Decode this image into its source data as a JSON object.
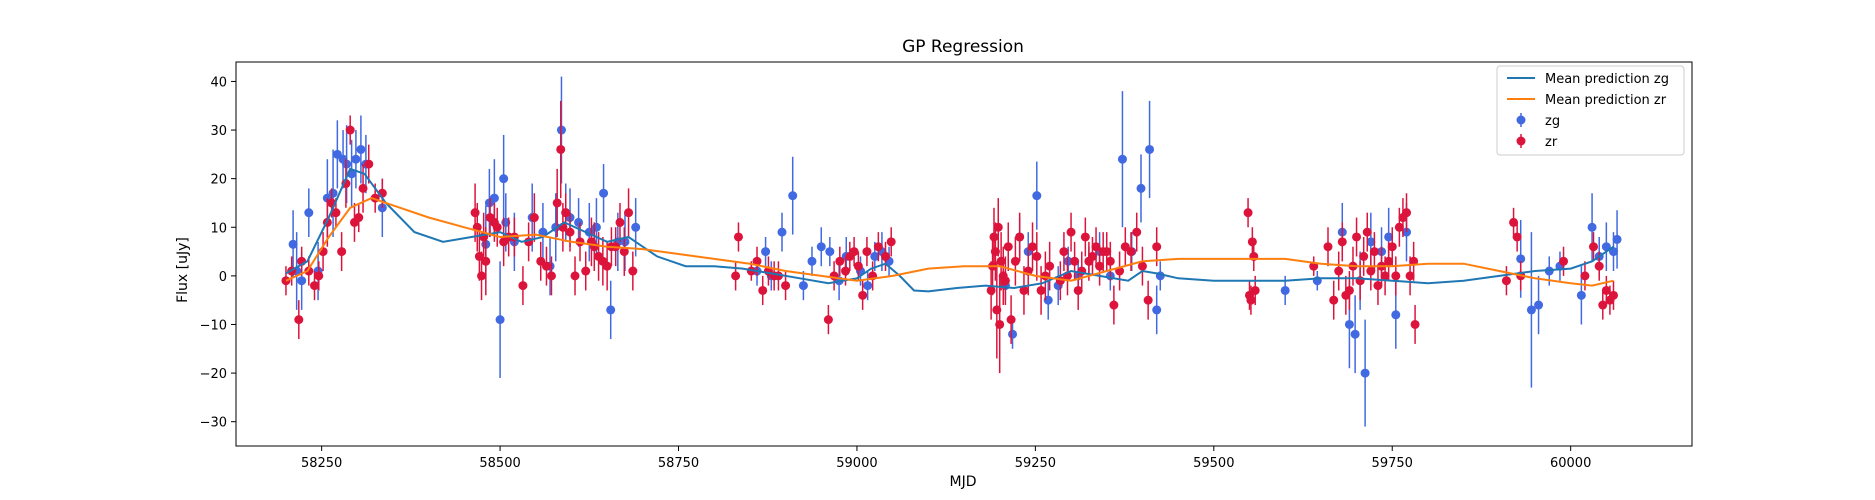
{
  "chart_data": {
    "type": "scatter",
    "title": "GP Regression",
    "xlabel": "MJD",
    "ylabel": "Flux [uJy]",
    "xlim": [
      58130,
      60170
    ],
    "ylim": [
      -35,
      44
    ],
    "xticks": [
      58250,
      58500,
      58750,
      59000,
      59250,
      59500,
      59750,
      60000
    ],
    "yticks": [
      -30,
      -20,
      -10,
      0,
      10,
      20,
      30,
      40
    ],
    "grid": false,
    "legend_position": "top-right",
    "legend": [
      {
        "label": "Mean prediction zg",
        "kind": "line",
        "color": "#1f77b4"
      },
      {
        "label": "Mean prediction zr",
        "kind": "line",
        "color": "#ff7f0e"
      },
      {
        "label": "zg",
        "kind": "errorbar",
        "color": "#4169e1"
      },
      {
        "label": "zr",
        "kind": "errorbar",
        "color": "#dc143c"
      }
    ],
    "series": [
      {
        "name": "Mean prediction zg",
        "kind": "line",
        "color": "#1f77b4",
        "x": [
          58200,
          58230,
          58260,
          58290,
          58310,
          58340,
          58380,
          58420,
          58460,
          58500,
          58530,
          58560,
          58590,
          58620,
          58650,
          58680,
          58720,
          58760,
          58800,
          58840,
          58880,
          58920,
          58960,
          59000,
          59020,
          59040,
          59060,
          59080,
          59100,
          59140,
          59180,
          59220,
          59260,
          59300,
          59340,
          59380,
          59400,
          59420,
          59450,
          59500,
          59550,
          59600,
          59650,
          59700,
          59750,
          59800,
          59850,
          59900,
          59950,
          60000,
          60030,
          60060
        ],
        "y": [
          0.5,
          3,
          12,
          22,
          21,
          15,
          9,
          7,
          8,
          9,
          7,
          8,
          11,
          9,
          7,
          8,
          4,
          2,
          2,
          1.5,
          0.5,
          -0.5,
          -1.5,
          -0.5,
          1.5,
          2.5,
          0,
          -3,
          -3.2,
          -2.5,
          -2,
          -2.5,
          -1.5,
          1,
          0,
          -1,
          1,
          0.5,
          -0.5,
          -1,
          -1,
          -1,
          -0.5,
          -0.5,
          -1,
          -1.5,
          -1,
          0,
          1,
          1.5,
          3,
          6
        ]
      },
      {
        "name": "Mean prediction zr",
        "kind": "line",
        "color": "#ff7f0e",
        "x": [
          58200,
          58230,
          58260,
          58290,
          58320,
          58360,
          58400,
          58450,
          58500,
          58550,
          58600,
          58650,
          58700,
          58750,
          58800,
          58850,
          58900,
          58950,
          59000,
          59050,
          59100,
          59150,
          59200,
          59250,
          59300,
          59350,
          59400,
          59450,
          59500,
          59550,
          59600,
          59650,
          59700,
          59750,
          59800,
          59850,
          59900,
          59950,
          60000,
          60030,
          60060
        ],
        "y": [
          -1,
          1,
          8,
          14,
          16,
          14,
          12,
          10,
          8,
          8.5,
          7,
          6,
          5.5,
          4.5,
          3.5,
          2.5,
          1,
          0,
          -1,
          0,
          1.5,
          2,
          2,
          0,
          -1,
          1,
          3,
          3.5,
          3.5,
          3.5,
          3.5,
          2.5,
          2,
          2,
          2.5,
          2.5,
          1,
          -0.5,
          -1.5,
          -2,
          -1
        ]
      },
      {
        "name": "zg",
        "kind": "errorbar",
        "color": "#4169e1",
        "x": [
          58210,
          58215,
          58222,
          58232,
          58245,
          58258,
          58266,
          58272,
          58280,
          58285,
          58292,
          58298,
          58305,
          58312,
          58335,
          58480,
          58485,
          58492,
          58500,
          58505,
          58508,
          58520,
          58545,
          58560,
          58570,
          58578,
          58586,
          58592,
          58598,
          58610,
          58625,
          58635,
          58645,
          58655,
          58665,
          58675,
          58690,
          58860,
          58872,
          58880,
          58895,
          58910,
          58925,
          58937,
          58950,
          58962,
          58975,
          58985,
          59005,
          59015,
          59025,
          59035,
          59045,
          59208,
          59218,
          59228,
          59240,
          59252,
          59268,
          59282,
          59296,
          59310,
          59325,
          59340,
          59355,
          59372,
          59385,
          59398,
          59410,
          59420,
          59425,
          59600,
          59645,
          59680,
          59690,
          59698,
          59705,
          59712,
          59720,
          59735,
          59745,
          59755,
          59770,
          59930,
          59945,
          59955,
          59970,
          59985,
          60015,
          60030,
          60040,
          60050,
          60060,
          60065
        ],
        "y": [
          6.5,
          1,
          -1,
          13,
          1,
          16,
          17,
          25,
          24,
          23,
          21,
          24,
          26,
          23,
          14,
          6.5,
          15,
          16,
          -9,
          20,
          11,
          7,
          12,
          9,
          2,
          10,
          30,
          13,
          12,
          11,
          9,
          10,
          17,
          -7,
          7,
          7,
          10,
          1,
          5,
          0,
          9,
          16.5,
          -2,
          3,
          6,
          5,
          -1,
          4,
          1,
          -2,
          4,
          5,
          3,
          -2,
          -12,
          8,
          5,
          16.5,
          -5,
          -2,
          3,
          0,
          3,
          5,
          0,
          24,
          5,
          18,
          26,
          -7,
          0,
          -3,
          -1,
          9,
          -10,
          -12,
          -1,
          -20,
          7,
          5,
          8,
          -8,
          9,
          3.5,
          -7,
          -6,
          1,
          2,
          -4,
          10,
          4,
          6,
          5,
          7.5
        ],
        "err": [
          7,
          8,
          6,
          5,
          6,
          8,
          9,
          7,
          6,
          8,
          7,
          6,
          7,
          6,
          6,
          8,
          7,
          8,
          12,
          9,
          6,
          6,
          7,
          6,
          6,
          7,
          11,
          6,
          6,
          5,
          6,
          6,
          6,
          6,
          6,
          6,
          6,
          3,
          3,
          3,
          4,
          8,
          3,
          3,
          4,
          3,
          4,
          4,
          3,
          3,
          3,
          4,
          3,
          3,
          3,
          4,
          4,
          7,
          4,
          4,
          3,
          3,
          3,
          4,
          3,
          14,
          4,
          7,
          10,
          5,
          3,
          3,
          2,
          6,
          9,
          8,
          6,
          11,
          6,
          5,
          6,
          7,
          6,
          8,
          16,
          6,
          3,
          3,
          6,
          7,
          4,
          5,
          4,
          6
        ]
      },
      {
        "name": "zr",
        "kind": "errorbar",
        "color": "#dc143c",
        "x": [
          58200,
          58208,
          58218,
          58222,
          58232,
          58240,
          58246,
          58252,
          58258,
          58264,
          58270,
          58278,
          58284,
          58290,
          58296,
          58302,
          58308,
          58316,
          58325,
          58335,
          58465,
          58468,
          58471,
          58474,
          58477,
          58480,
          58486,
          58492,
          58496,
          58505,
          58512,
          58520,
          58532,
          58540,
          58548,
          58557,
          58565,
          58572,
          58580,
          58585,
          58588,
          58592,
          58598,
          58605,
          58612,
          58620,
          58628,
          58632,
          58638,
          58644,
          58650,
          58656,
          58662,
          58668,
          58674,
          58680,
          58686,
          58830,
          58834,
          58852,
          58860,
          58868,
          58876,
          58884,
          58890,
          58900,
          58960,
          58968,
          58976,
          58984,
          58990,
          58996,
          59002,
          59008,
          59014,
          59022,
          59030,
          59040,
          59048,
          59188,
          59190,
          59192,
          59194,
          59196,
          59198,
          59200,
          59202,
          59205,
          59208,
          59212,
          59216,
          59222,
          59228,
          59234,
          59240,
          59246,
          59252,
          59258,
          59264,
          59270,
          59285,
          59290,
          59295,
          59300,
          59305,
          59310,
          59315,
          59320,
          59325,
          59330,
          59335,
          59340,
          59345,
          59350,
          59355,
          59360,
          59368,
          59376,
          59384,
          59392,
          59400,
          59408,
          59420,
          59548,
          59550,
          59552,
          59554,
          59556,
          59558,
          59640,
          59660,
          59668,
          59675,
          59680,
          59685,
          59690,
          59695,
          59700,
          59705,
          59710,
          59715,
          59720,
          59725,
          59730,
          59735,
          59740,
          59745,
          59750,
          59755,
          59760,
          59765,
          59770,
          59775,
          59780,
          59782,
          59910,
          59920,
          59925,
          59930,
          59990,
          60020,
          60032,
          60040,
          60045,
          60050,
          60055,
          60060
        ],
        "y": [
          -1,
          1,
          -9,
          3,
          1,
          -2,
          0,
          5,
          11,
          15,
          13,
          5,
          19,
          30,
          11,
          12,
          18,
          23,
          16,
          17,
          13,
          10,
          4,
          0,
          8,
          3,
          12,
          11,
          10,
          7,
          8,
          8,
          -2,
          7,
          12,
          3,
          2,
          0,
          15,
          26,
          10,
          13,
          9,
          0,
          7,
          1,
          7,
          6,
          4,
          3,
          2,
          6,
          6,
          11,
          5,
          13,
          1,
          0,
          8,
          1,
          3,
          -3,
          1,
          0,
          0,
          -2,
          -9,
          0,
          3,
          1,
          4,
          5,
          2,
          -4,
          5,
          0,
          6,
          4,
          7,
          -3,
          2,
          8,
          5,
          -7,
          10,
          -10,
          3,
          0,
          -1,
          6,
          -9,
          3,
          8,
          -3,
          1,
          6,
          4,
          -3,
          0,
          2,
          -1,
          5,
          0,
          9,
          3,
          -3,
          1,
          8,
          3,
          4,
          6,
          2,
          5,
          5,
          3,
          -6,
          1,
          6,
          5,
          9,
          2,
          -5,
          6,
          13,
          -4,
          -5,
          7,
          4,
          -3,
          2,
          6,
          -5,
          1,
          7,
          -4,
          -3,
          2,
          8,
          -1,
          4,
          9,
          1,
          5,
          -2,
          2,
          0,
          3,
          6,
          0,
          10,
          12,
          13,
          0,
          3,
          -10,
          -1,
          11,
          8,
          0,
          3,
          0,
          6,
          2,
          -6,
          -3,
          -5,
          -4
        ],
        "err": [
          3,
          3,
          4,
          3,
          3,
          3,
          3,
          4,
          5,
          3,
          3,
          4,
          5,
          3,
          4,
          3,
          5,
          4,
          3,
          3,
          6,
          5,
          5,
          5,
          5,
          7,
          4,
          4,
          4,
          5,
          4,
          4,
          4,
          4,
          5,
          4,
          4,
          4,
          7,
          10,
          5,
          4,
          4,
          4,
          4,
          4,
          5,
          5,
          5,
          5,
          5,
          4,
          4,
          4,
          5,
          5,
          4,
          3,
          3,
          2,
          3,
          3,
          3,
          3,
          3,
          3,
          3,
          3,
          3,
          3,
          3,
          3,
          3,
          3,
          3,
          3,
          3,
          3,
          3,
          6,
          6,
          6,
          6,
          10,
          6,
          10,
          6,
          6,
          5,
          5,
          5,
          5,
          5,
          5,
          5,
          5,
          5,
          5,
          5,
          5,
          4,
          4,
          4,
          4,
          4,
          4,
          4,
          4,
          4,
          4,
          4,
          4,
          4,
          4,
          4,
          4,
          4,
          4,
          4,
          4,
          4,
          4,
          4,
          3,
          3,
          3,
          3,
          3,
          3,
          2,
          4,
          4,
          4,
          4,
          4,
          4,
          4,
          4,
          4,
          4,
          4,
          4,
          4,
          4,
          4,
          4,
          4,
          4,
          4,
          4,
          4,
          4,
          4,
          4,
          4,
          3,
          3,
          3,
          3,
          3,
          3,
          3,
          3,
          3,
          3,
          3,
          3
        ]
      }
    ]
  }
}
